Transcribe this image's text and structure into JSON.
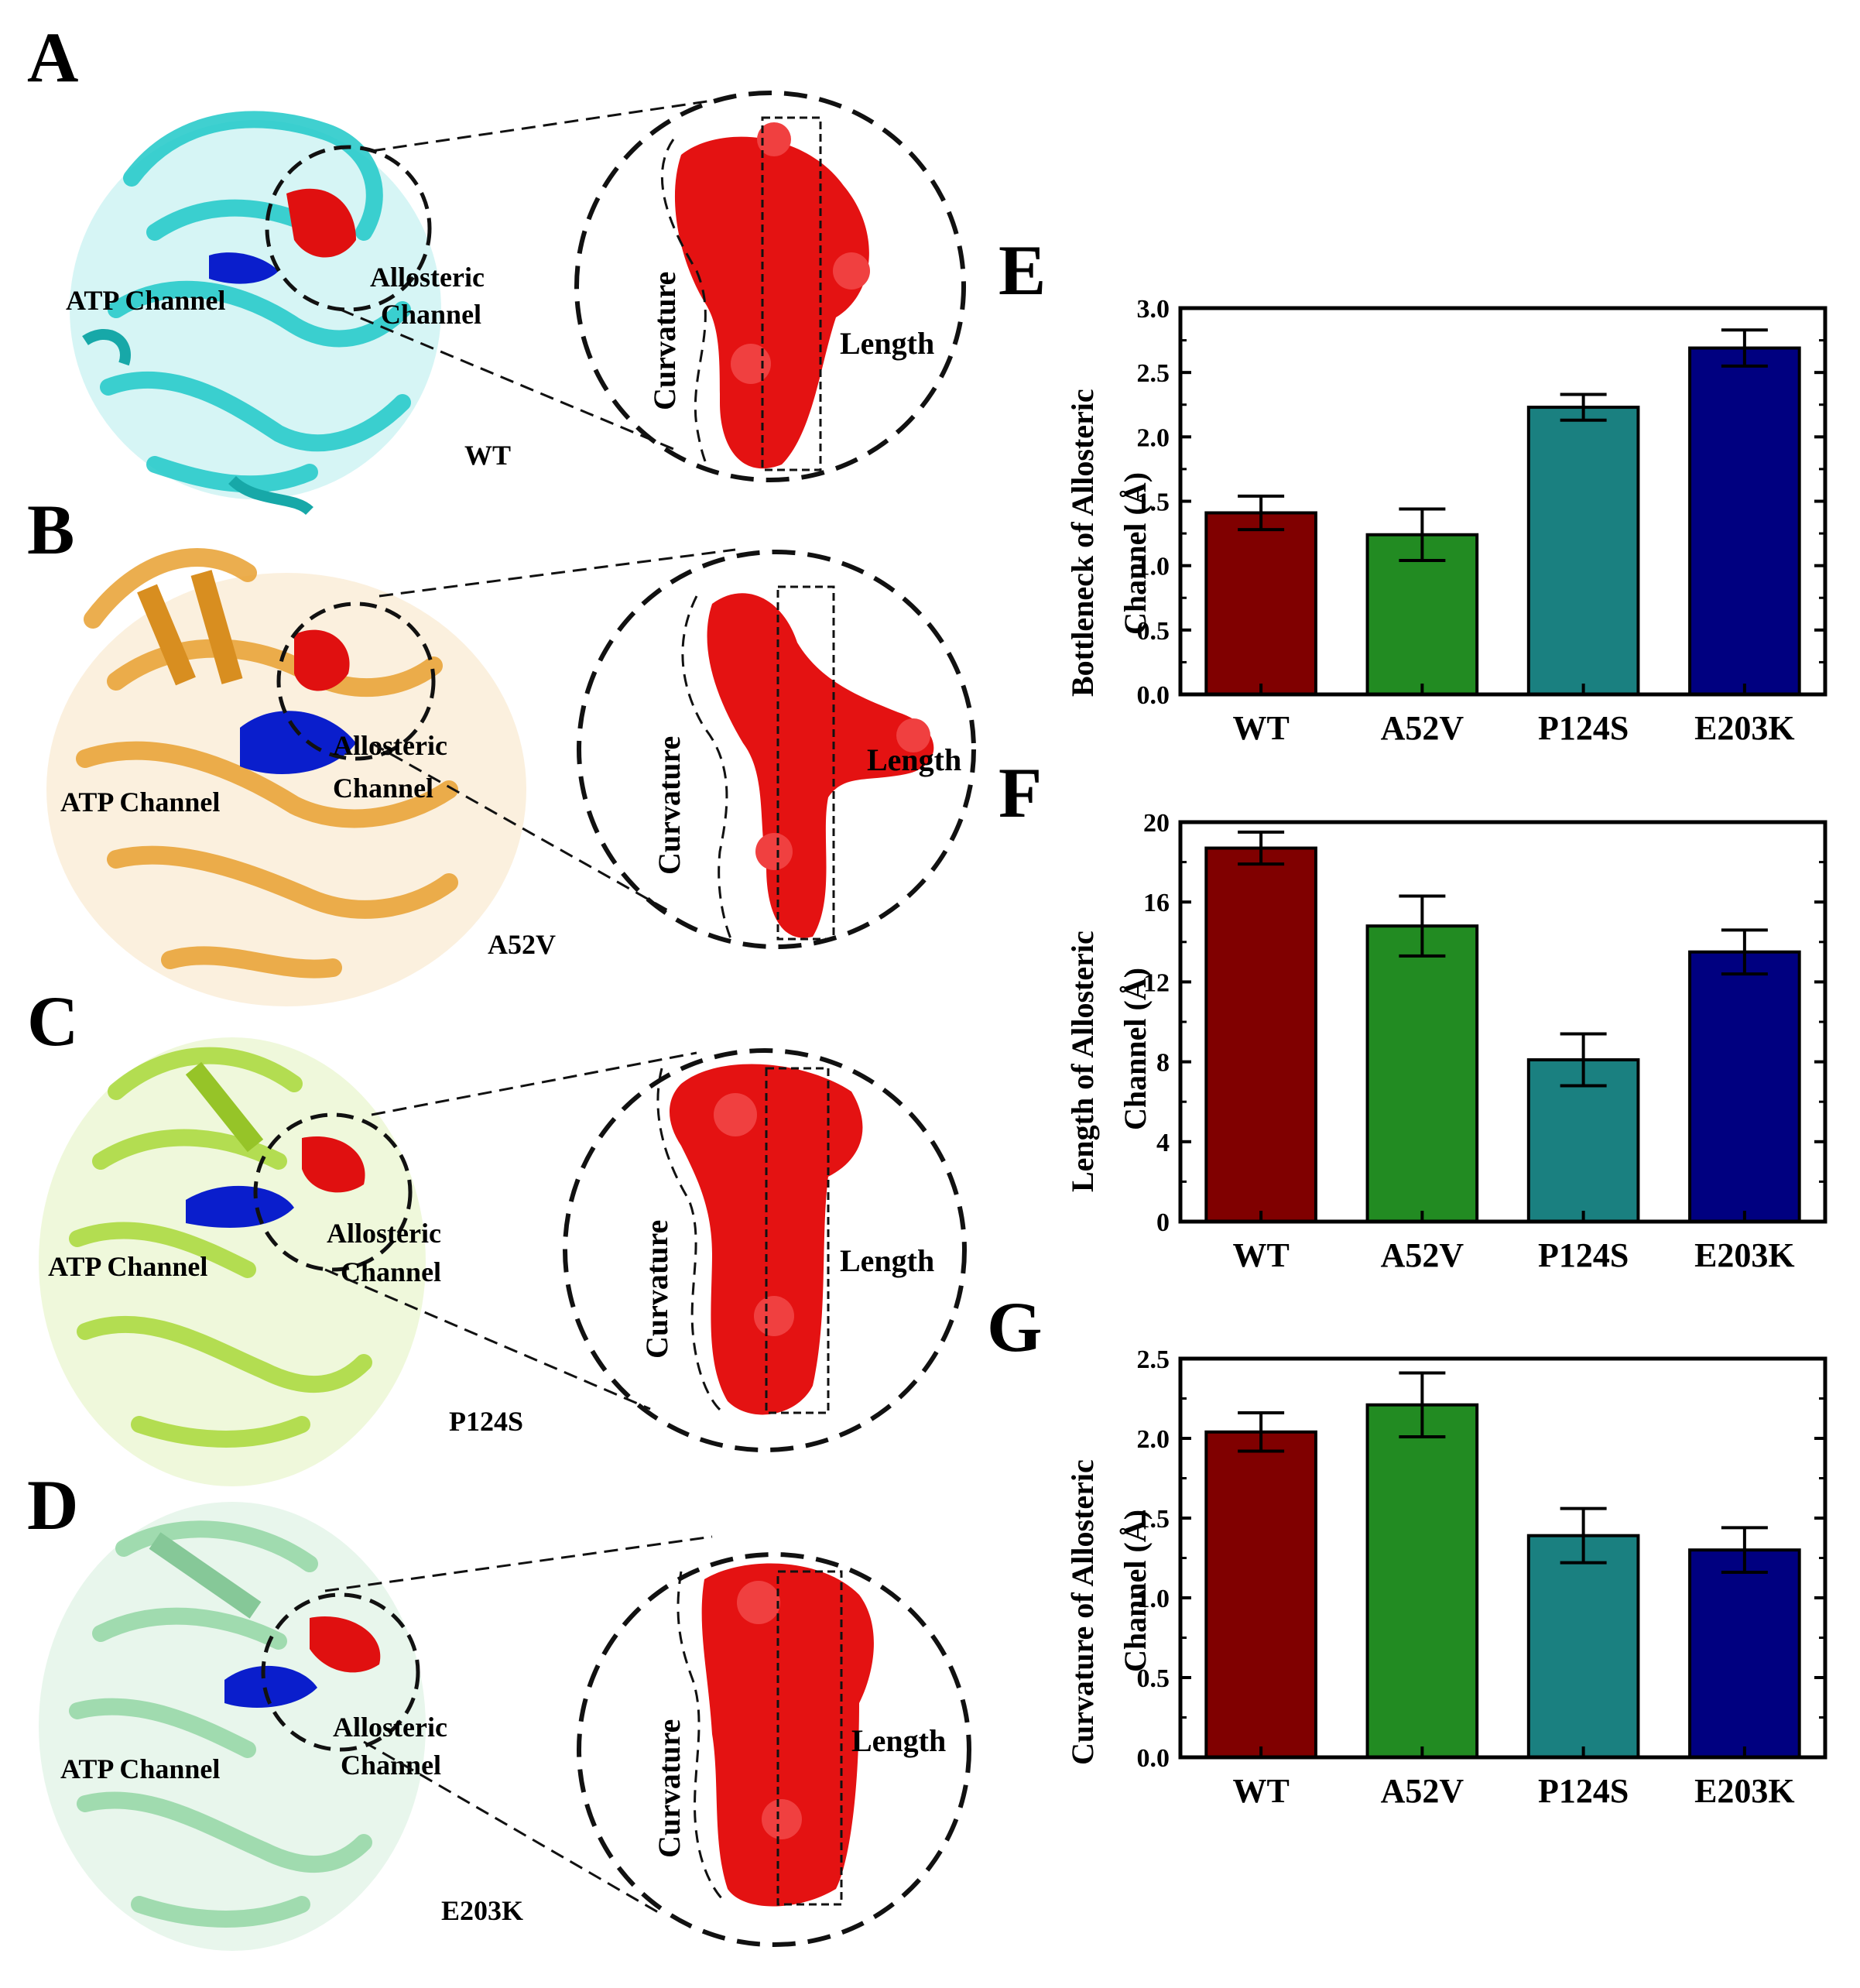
{
  "structures": [
    {
      "letter": "A",
      "variant": "WT",
      "atp_label": "ATP Channel",
      "allo_label_1": "Allosteric",
      "allo_label_2": "Channel",
      "curvature_label": "Curvature",
      "length_label": "Length",
      "color": "#1ec8c8"
    },
    {
      "letter": "B",
      "variant": "A52V",
      "atp_label": "ATP Channel",
      "allo_label_1": "Allosteric",
      "allo_label_2": "Channel",
      "curvature_label": "Curvature",
      "length_label": "Length",
      "color": "#e8a030"
    },
    {
      "letter": "C",
      "variant": "P124S",
      "atp_label": "ATP Channel",
      "allo_label_1": "Allosteric",
      "allo_label_2": "Channel",
      "curvature_label": "Curvature",
      "length_label": "Length",
      "color": "#a8d838"
    },
    {
      "letter": "D",
      "variant": "E203K",
      "atp_label": "ATP Channel",
      "allo_label_1": "Allosteric",
      "allo_label_2": "Channel",
      "curvature_label": "Curvature",
      "length_label": "Length",
      "color": "#98d8a8"
    }
  ],
  "chart_data": [
    {
      "letter": "E",
      "type": "bar",
      "categories": [
        "WT",
        "A52V",
        "P124S",
        "E203K"
      ],
      "values": [
        1.41,
        1.24,
        2.23,
        2.69
      ],
      "errors": [
        0.13,
        0.2,
        0.1,
        0.14
      ],
      "ylabel_line1": "Bottleneck of Allosteric",
      "ylabel_line2": "Channel (Å)",
      "ylim": [
        0,
        3.0
      ],
      "yticks": [
        "0.0",
        "0.5",
        "1.0",
        "1.5",
        "2.0",
        "2.5",
        "3.0"
      ],
      "colors": [
        "#800000",
        "#228B22",
        "#1a8080",
        "#000080"
      ]
    },
    {
      "letter": "F",
      "type": "bar",
      "categories": [
        "WT",
        "A52V",
        "P124S",
        "E203K"
      ],
      "values": [
        18.7,
        14.8,
        8.1,
        13.5
      ],
      "errors": [
        0.8,
        1.5,
        1.3,
        1.1
      ],
      "ylabel_line1": "Length of Allosteric",
      "ylabel_line2": "Channel (Å)",
      "ylim": [
        0,
        20
      ],
      "yticks": [
        "0",
        "4",
        "8",
        "12",
        "16",
        "20"
      ],
      "colors": [
        "#800000",
        "#228B22",
        "#1a8080",
        "#000080"
      ]
    },
    {
      "letter": "G",
      "type": "bar",
      "categories": [
        "WT",
        "A52V",
        "P124S",
        "E203K"
      ],
      "values": [
        2.04,
        2.21,
        1.39,
        1.3
      ],
      "errors": [
        0.12,
        0.2,
        0.17,
        0.14
      ],
      "ylabel_line1": "Curvature of Allosteric",
      "ylabel_line2": "Channel (Å)",
      "ylim": [
        0,
        2.5
      ],
      "yticks": [
        "0.0",
        "0.5",
        "1.0",
        "1.5",
        "2.0",
        "2.5"
      ],
      "colors": [
        "#800000",
        "#228B22",
        "#1a8080",
        "#000080"
      ]
    }
  ]
}
